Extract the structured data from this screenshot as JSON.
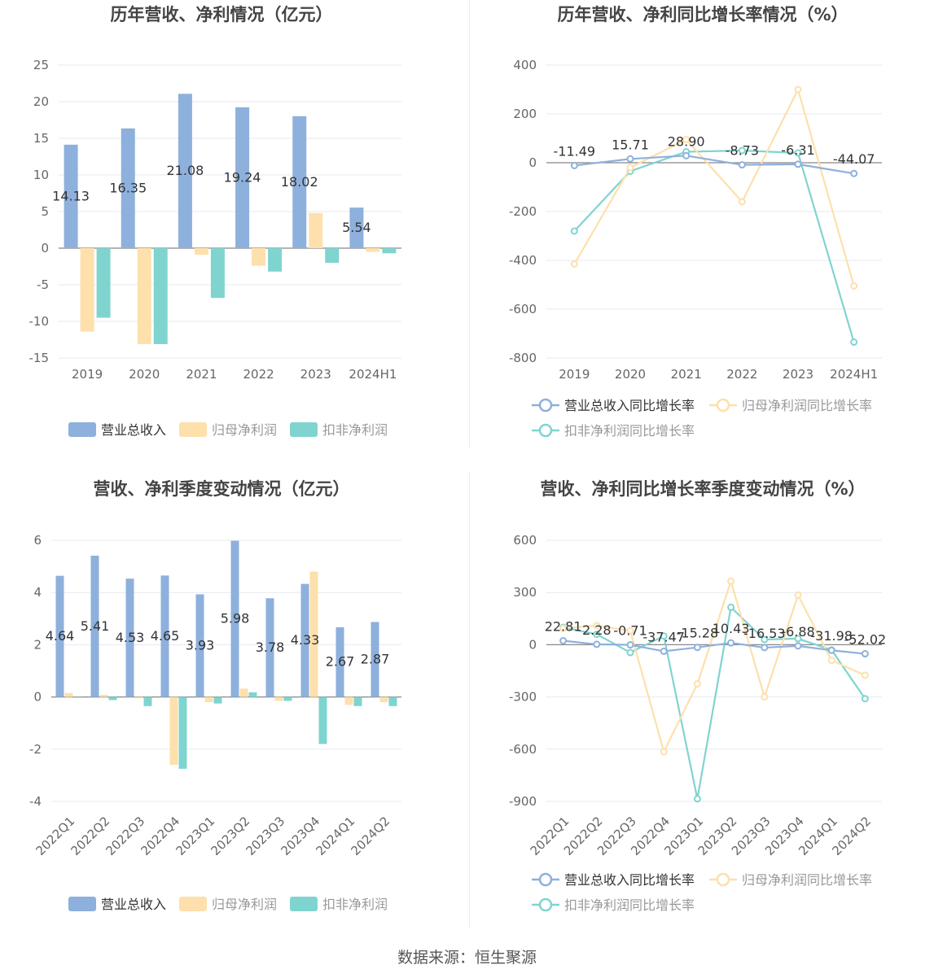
{
  "colors": {
    "revenue": "#8eb0dc",
    "parent": "#fde0ac",
    "nonrec": "#80d4d0"
  },
  "charts": [
    {
      "id": "annual-values",
      "title": "历年营收、净利情况（亿元）",
      "type": "bar",
      "categories": [
        "2019",
        "2020",
        "2021",
        "2022",
        "2023",
        "2024H1"
      ],
      "ylim": [
        -15,
        25
      ],
      "yticks": [
        25,
        20,
        15,
        10,
        5,
        0,
        -5,
        -10,
        -15
      ],
      "series": [
        {
          "name": "营业总收入",
          "values": [
            14.13,
            16.35,
            21.08,
            19.24,
            18.02,
            5.54
          ],
          "labels": [
            "14.13",
            "16.35",
            "21.08",
            "19.24",
            "18.02",
            "5.54"
          ]
        },
        {
          "name": "归母净利润",
          "values": [
            -11.4,
            -13.1,
            -0.9,
            -2.4,
            4.8,
            -0.5
          ]
        },
        {
          "name": "扣非净利润",
          "values": [
            -9.5,
            -13.1,
            -6.8,
            -3.2,
            -2.0,
            -0.7
          ]
        }
      ]
    },
    {
      "id": "annual-growth",
      "title": "历年营收、净利同比增长率情况（%）",
      "type": "line",
      "categories": [
        "2019",
        "2020",
        "2021",
        "2022",
        "2023",
        "2024H1"
      ],
      "ylim": [
        -800,
        400
      ],
      "yticks": [
        400,
        200,
        0,
        -200,
        -400,
        -600,
        -800
      ],
      "series": [
        {
          "name": "营业总收入同比增长率",
          "values": [
            -11.49,
            15.71,
            28.9,
            -8.73,
            -6.31,
            -44.07
          ],
          "labels": [
            "-11.49",
            "15.71",
            "28.90",
            "-8.73",
            "-6.31",
            "-44.07"
          ]
        },
        {
          "name": "归母净利润同比增长率",
          "values": [
            -415,
            -20,
            95,
            -160,
            300,
            -505
          ]
        },
        {
          "name": "扣非净利润同比增长率",
          "values": [
            -280,
            -35,
            45,
            50,
            40,
            -735
          ]
        }
      ]
    },
    {
      "id": "quarterly-values",
      "title": "营收、净利季度变动情况（亿元）",
      "type": "bar",
      "categories": [
        "2022Q1",
        "2022Q2",
        "2022Q3",
        "2022Q4",
        "2023Q1",
        "2023Q2",
        "2023Q3",
        "2023Q4",
        "2024Q1",
        "2024Q2"
      ],
      "ylim": [
        -4,
        6
      ],
      "yticks": [
        6,
        4,
        2,
        0,
        -2,
        -4
      ],
      "series": [
        {
          "name": "营业总收入",
          "values": [
            4.64,
            5.41,
            4.53,
            4.65,
            3.93,
            5.98,
            3.78,
            4.33,
            2.67,
            2.87
          ],
          "labels": [
            "4.64",
            "5.41",
            "4.53",
            "4.65",
            "3.93",
            "5.98",
            "3.78",
            "4.33",
            "2.67",
            "2.87"
          ]
        },
        {
          "name": "归母净利润",
          "values": [
            0.15,
            0.08,
            -0.05,
            -2.6,
            -0.2,
            0.32,
            -0.15,
            4.8,
            -0.3,
            -0.2
          ]
        },
        {
          "name": "扣非净利润",
          "values": [
            -0.02,
            -0.12,
            -0.35,
            -2.75,
            -0.25,
            0.18,
            -0.15,
            -1.8,
            -0.35,
            -0.35
          ]
        }
      ]
    },
    {
      "id": "quarterly-growth",
      "title": "营收、净利同比增长率季度变动情况（%）",
      "type": "line",
      "categories": [
        "2022Q1",
        "2022Q2",
        "2022Q3",
        "2022Q4",
        "2023Q1",
        "2023Q2",
        "2023Q3",
        "2023Q4",
        "2024Q1",
        "2024Q2"
      ],
      "ylim": [
        -900,
        600
      ],
      "yticks": [
        600,
        300,
        0,
        -300,
        -600,
        -900
      ],
      "series": [
        {
          "name": "营业总收入同比增长率",
          "values": [
            22.81,
            2.28,
            -0.71,
            -37.47,
            -15.28,
            10.43,
            -16.53,
            -6.88,
            -31.98,
            -52.02
          ],
          "labels": [
            "22.81",
            "2.28",
            "-0.71",
            "-37.47",
            "-15.28",
            "10.43",
            "-16.53",
            "-6.88",
            "-31.98",
            "-52.02"
          ]
        },
        {
          "name": "归母净利润同比增长率",
          "values": [
            95,
            110,
            80,
            -615,
            -225,
            365,
            -300,
            285,
            -90,
            -175
          ]
        },
        {
          "name": "扣非净利润同比增长率",
          "values": [
            100,
            60,
            -45,
            50,
            -885,
            215,
            30,
            35,
            -30,
            -310
          ]
        }
      ]
    }
  ],
  "source": "数据来源：恒生聚源"
}
